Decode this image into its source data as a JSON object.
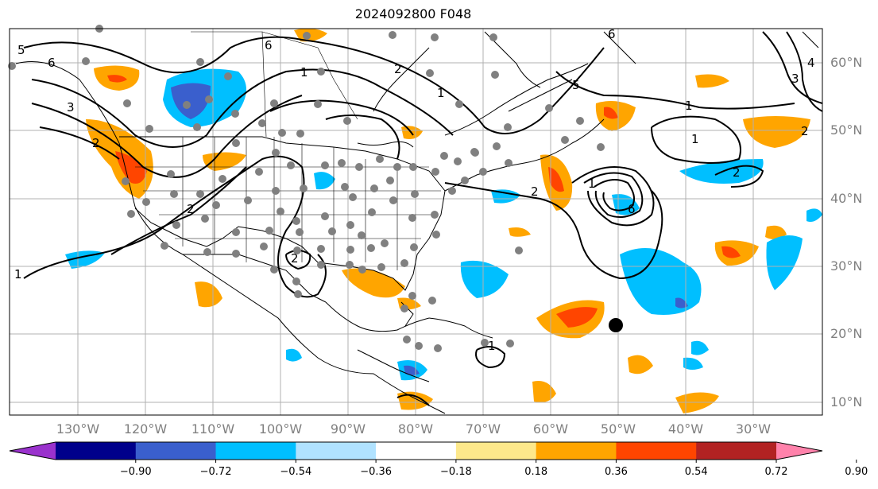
{
  "title": "2024092800 F048",
  "map": {
    "lat_labels": [
      "60°N",
      "50°N",
      "40°N",
      "30°N",
      "20°N",
      "10°N"
    ],
    "lon_labels": [
      "130°W",
      "120°W",
      "110°W",
      "100°W",
      "90°W",
      "80°W",
      "70°W",
      "60°W",
      "50°W",
      "40°W",
      "30°W"
    ],
    "contour_labels": [
      "5",
      "6",
      "6",
      "1",
      "2",
      "1",
      "6",
      "1",
      "2",
      "3",
      "4",
      "5",
      "2",
      "1",
      "2",
      "2",
      "1",
      "1",
      "2",
      "2",
      "3",
      "6",
      "1"
    ],
    "storm_marker": "black-dot"
  },
  "colorbar": {
    "ticks": [
      "−0.90",
      "−0.72",
      "−0.54",
      "−0.36",
      "−0.18",
      "0.18",
      "0.36",
      "0.54",
      "0.72",
      "0.90"
    ],
    "colors": [
      "#9a32cd",
      "#00008b",
      "#3a5fcd",
      "#00bfff",
      "#b0e2ff",
      "#ffffff",
      "#fde88b",
      "#ffa500",
      "#ff4500",
      "#b22222",
      "#ff82ab"
    ]
  }
}
